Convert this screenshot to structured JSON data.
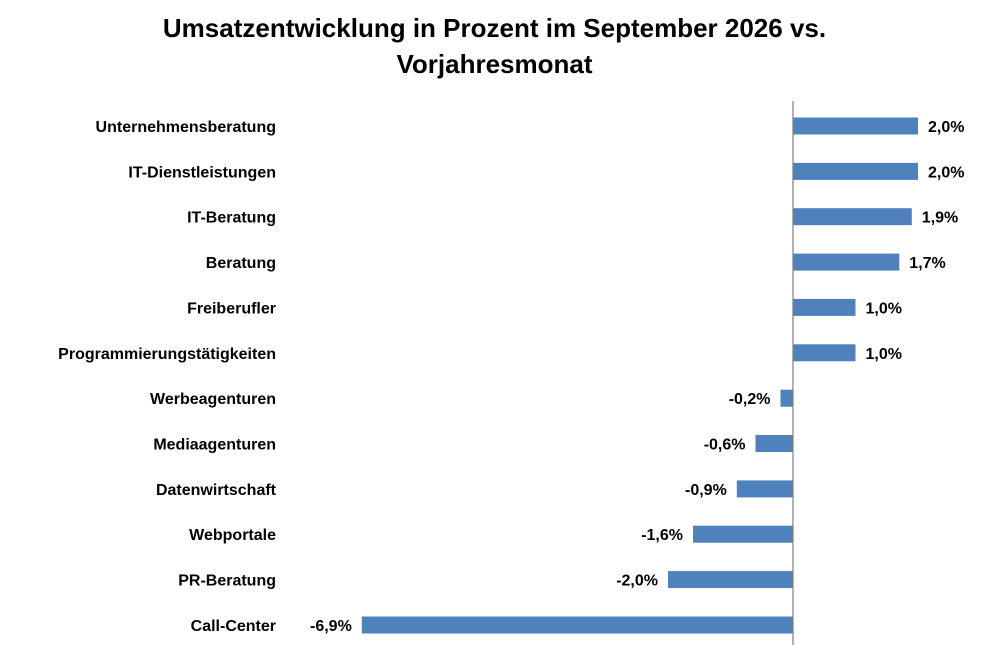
{
  "title_line1": "Umsatzentwicklung in Prozent im September 2026 vs.",
  "title_line2": "Vorjahresmonat",
  "chart_data": {
    "type": "bar",
    "orientation": "horizontal",
    "title": "Umsatzentwicklung in Prozent im September 2026 vs. Vorjahresmonat",
    "categories": [
      "Unternehmensberatung",
      "IT-Dienstleistungen",
      "IT-Beratung",
      "Beratung",
      "Freiberufler",
      "Programmierungstätigkeiten",
      "Werbeagenturen",
      "Mediaagenturen",
      "Datenwirtschaft",
      "Webportale",
      "PR-Beratung",
      "Call-Center"
    ],
    "values": [
      2.0,
      2.0,
      1.9,
      1.7,
      1.0,
      1.0,
      -0.2,
      -0.6,
      -0.9,
      -1.6,
      -2.0,
      -6.9
    ],
    "value_labels": [
      "2,0%",
      "2,0%",
      "1,9%",
      "1,7%",
      "1,0%",
      "1,0%",
      "-0,2%",
      "-0,6%",
      "-0,9%",
      "-1,6%",
      "-2,0%",
      "-6,9%"
    ],
    "xlim": [
      -6.9,
      2.0
    ],
    "bar_color": "#4f81bd",
    "axis_color": "#808080",
    "grid": false,
    "legend": "none"
  }
}
